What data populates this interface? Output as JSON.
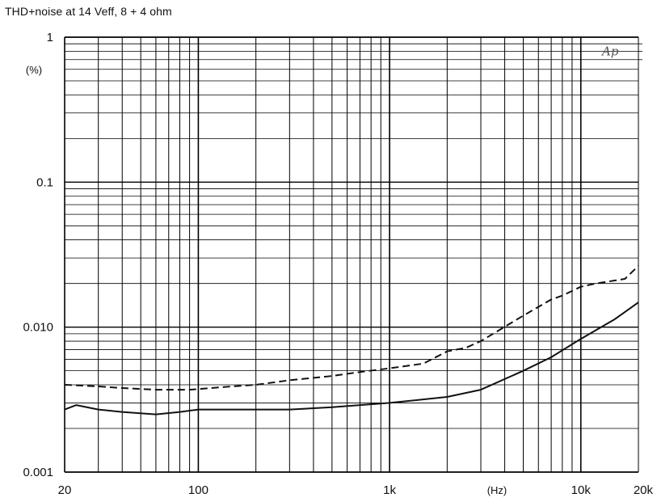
{
  "title": "THD+noise at 14 Veff, 8 + 4 ohm",
  "chart_data": {
    "type": "line",
    "title": "THD+noise at 14 Veff, 8 + 4 ohm",
    "xlabel": "(Hz)",
    "ylabel": "(%)",
    "x_scale": "log",
    "y_scale": "log",
    "xlim": [
      20,
      20000
    ],
    "ylim": [
      0.001,
      1
    ],
    "x_ticks": [
      {
        "value": 20,
        "label": "20"
      },
      {
        "value": 100,
        "label": "100"
      },
      {
        "value": 1000,
        "label": "1k"
      },
      {
        "value": 10000,
        "label": "10k"
      },
      {
        "value": 20000,
        "label": "20k"
      }
    ],
    "y_ticks": [
      {
        "value": 1,
        "label": "1"
      },
      {
        "value": 0.1,
        "label": "0.1"
      },
      {
        "value": 0.01,
        "label": "0.010"
      },
      {
        "value": 0.001,
        "label": "0.001"
      }
    ],
    "annotation": "Ap",
    "grid": true,
    "series": [
      {
        "style": "solid",
        "x": [
          20,
          23,
          30,
          40,
          60,
          80,
          100,
          200,
          300,
          500,
          700,
          1000,
          2000,
          3000,
          5000,
          7000,
          10000,
          15000,
          20000
        ],
        "y": [
          0.0027,
          0.0029,
          0.0027,
          0.0026,
          0.0025,
          0.0026,
          0.0027,
          0.0027,
          0.0027,
          0.0028,
          0.0029,
          0.003,
          0.0033,
          0.0037,
          0.005,
          0.0062,
          0.0083,
          0.0113,
          0.0148
        ]
      },
      {
        "style": "dashed",
        "x": [
          20,
          30,
          40,
          60,
          90,
          150,
          200,
          300,
          500,
          700,
          1000,
          1500,
          2000,
          2500,
          3000,
          5000,
          7000,
          8000,
          10000,
          12000,
          17000,
          20000
        ],
        "y": [
          0.004,
          0.0039,
          0.0038,
          0.0037,
          0.0037,
          0.0039,
          0.004,
          0.0043,
          0.0046,
          0.0049,
          0.0052,
          0.0056,
          0.0068,
          0.0072,
          0.008,
          0.012,
          0.0155,
          0.0165,
          0.019,
          0.02,
          0.0215,
          0.0265
        ]
      }
    ]
  }
}
